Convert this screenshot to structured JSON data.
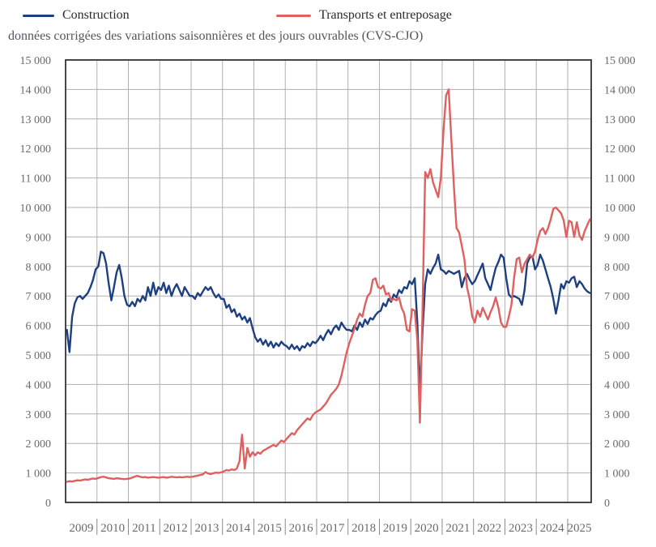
{
  "legend": {
    "items": [
      {
        "label": "Construction",
        "color": "#1e4080"
      },
      {
        "label": "Transports et entreposage",
        "color": "#e05f5f"
      }
    ]
  },
  "subtitle": "données corrigées des variations saisonnières et des jours ouvrables (CVS-CJO)",
  "colors": {
    "construction": "#1e4080",
    "transport": "#e05f5f",
    "grid": "#b0b0b0",
    "plot_border": "#333333",
    "axis_text": "#6a6a6a",
    "background": "#ffffff"
  },
  "chart_data": {
    "type": "line",
    "title": "",
    "subtitle": "données corrigées des variations saisonnières et des jours ouvrables (CVS-CJO)",
    "frequency": "monthly",
    "x_start": "2009-01",
    "x_end": "2025-09",
    "x_tick_labels": [
      "2009",
      "2010",
      "2011",
      "2012",
      "2013",
      "2014",
      "2015",
      "2016",
      "2017",
      "2018",
      "2019",
      "2020",
      "2021",
      "2022",
      "2023",
      "2024",
      "2025"
    ],
    "y_axis": {
      "min": 0,
      "max": 15000,
      "step": 1000,
      "sides": [
        "left",
        "right"
      ],
      "tick_format": "thousands with space, e.g. 15 000"
    },
    "grid": true,
    "legend_position": "top",
    "series": [
      {
        "name": "Construction",
        "color": "#1e4080",
        "values": [
          5850,
          5100,
          6300,
          6750,
          6950,
          7000,
          6900,
          7000,
          7100,
          7300,
          7550,
          7900,
          8000,
          8500,
          8450,
          8100,
          7400,
          6850,
          7300,
          7800,
          8050,
          7600,
          7000,
          6700,
          6650,
          6800,
          6650,
          6900,
          6800,
          7000,
          6850,
          7300,
          7000,
          7450,
          7050,
          7300,
          7200,
          7450,
          7100,
          7350,
          7000,
          7250,
          7400,
          7200,
          7000,
          7300,
          7150,
          7000,
          7000,
          6900,
          7100,
          7000,
          7150,
          7300,
          7200,
          7300,
          7100,
          6950,
          7050,
          6900,
          6900,
          6600,
          6700,
          6450,
          6550,
          6300,
          6400,
          6200,
          6300,
          6100,
          6250,
          5900,
          5600,
          5450,
          5550,
          5350,
          5500,
          5300,
          5450,
          5250,
          5400,
          5300,
          5450,
          5350,
          5300,
          5200,
          5350,
          5200,
          5300,
          5150,
          5300,
          5250,
          5400,
          5300,
          5450,
          5400,
          5500,
          5650,
          5500,
          5700,
          5850,
          5700,
          5900,
          6000,
          5850,
          6100,
          5950,
          5850,
          5850,
          5800,
          6000,
          5850,
          6100,
          5950,
          6200,
          6050,
          6250,
          6200,
          6350,
          6450,
          6500,
          6750,
          6650,
          6900,
          6800,
          7050,
          6950,
          7200,
          7100,
          7300,
          7250,
          7500,
          7400,
          7600,
          6100,
          3700,
          5800,
          7400,
          7900,
          7750,
          7950,
          8100,
          8400,
          7900,
          7850,
          7750,
          7850,
          7800,
          7750,
          7800,
          7850,
          7300,
          7600,
          7750,
          7550,
          7400,
          7500,
          7700,
          7900,
          8100,
          7600,
          7400,
          7200,
          7600,
          7950,
          8150,
          8400,
          8300,
          7600,
          7050,
          6950,
          7000,
          6950,
          6900,
          6700,
          7200,
          8100,
          8300,
          8350,
          7900,
          8050,
          8400,
          8200,
          7900,
          7600,
          7300,
          6900,
          6400,
          6850,
          7400,
          7250,
          7500,
          7450,
          7600,
          7650,
          7300,
          7500,
          7400,
          7250,
          7150,
          7100
        ]
      },
      {
        "name": "Transports et entreposage",
        "color": "#e05f5f",
        "values": [
          700,
          720,
          710,
          730,
          750,
          740,
          760,
          780,
          770,
          790,
          810,
          800,
          830,
          860,
          870,
          850,
          820,
          810,
          800,
          820,
          810,
          800,
          790,
          800,
          810,
          840,
          880,
          900,
          870,
          850,
          860,
          840,
          850,
          860,
          850,
          840,
          850,
          860,
          840,
          850,
          870,
          860,
          850,
          860,
          850,
          860,
          870,
          860,
          870,
          890,
          910,
          930,
          950,
          1030,
          980,
          960,
          990,
          1010,
          1000,
          1020,
          1050,
          1100,
          1080,
          1120,
          1100,
          1150,
          1400,
          2300,
          1150,
          1850,
          1550,
          1700,
          1600,
          1700,
          1650,
          1750,
          1800,
          1850,
          1900,
          1950,
          1900,
          2000,
          2100,
          2050,
          2150,
          2250,
          2350,
          2300,
          2450,
          2550,
          2650,
          2750,
          2850,
          2800,
          2950,
          3050,
          3100,
          3150,
          3250,
          3350,
          3500,
          3650,
          3750,
          3850,
          4000,
          4300,
          4700,
          5100,
          5400,
          5650,
          5900,
          6200,
          6400,
          6300,
          6700,
          7000,
          7100,
          7550,
          7600,
          7300,
          7250,
          7350,
          7050,
          7100,
          6850,
          6900,
          6850,
          6950,
          6600,
          6400,
          5850,
          5800,
          6550,
          6500,
          5500,
          2700,
          6500,
          11200,
          11000,
          11300,
          10850,
          10600,
          10350,
          11000,
          12600,
          13800,
          14000,
          12300,
          10700,
          9300,
          9150,
          8700,
          8250,
          7300,
          6900,
          6300,
          6100,
          6500,
          6300,
          6600,
          6400,
          6200,
          6450,
          6650,
          6950,
          6600,
          6100,
          5950,
          5950,
          6300,
          6700,
          7600,
          8250,
          8300,
          7800,
          8100,
          8250,
          8400,
          8300,
          8500,
          8900,
          9200,
          9300,
          9100,
          9300,
          9600,
          9950,
          10000,
          9900,
          9800,
          9550,
          9000,
          9550,
          9500,
          9000,
          9500,
          9050,
          8900,
          9200,
          9400,
          9600
        ]
      }
    ]
  }
}
